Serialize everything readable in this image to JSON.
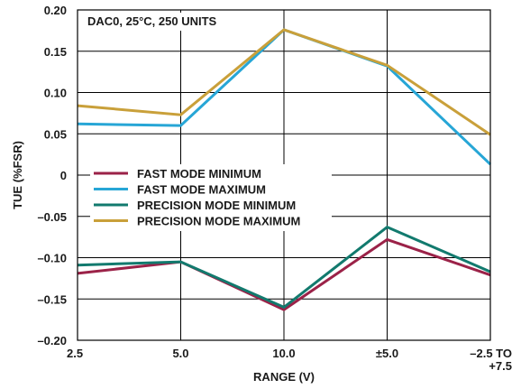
{
  "chart_data": {
    "type": "line",
    "annotation": "DAC0, 25°C, 250 UNITS",
    "xlabel": "RANGE (V)",
    "ylabel": "TUE (%FSR)",
    "categories": [
      "2.5",
      "5.0",
      "10.0",
      "±5.0",
      "–2.5 TO\n+7.5"
    ],
    "ylim": [
      -0.2,
      0.2
    ],
    "yticks": [
      0.2,
      0.15,
      0.1,
      0.05,
      0,
      -0.05,
      -0.1,
      -0.15,
      -0.2
    ],
    "ytick_labels": [
      "0.20",
      "0.15",
      "0.10",
      "0.05",
      "0",
      "–0.05",
      "–0.10",
      "–0.15",
      "–0.20"
    ],
    "grid": true,
    "legend_position": "middle-left",
    "series": [
      {
        "name": "FAST MODE MINIMUM",
        "color": "#9b2248",
        "values": [
          -0.119,
          -0.105,
          -0.163,
          -0.078,
          -0.121
        ]
      },
      {
        "name": "FAST MODE MAXIMUM",
        "color": "#27a6d6",
        "values": [
          0.062,
          0.06,
          0.176,
          0.132,
          0.013
        ]
      },
      {
        "name": "PRECISION MODE MINIMUM",
        "color": "#127a6e",
        "values": [
          -0.109,
          -0.105,
          -0.16,
          -0.063,
          -0.117
        ]
      },
      {
        "name": "PRECISION MODE MAXIMUM",
        "color": "#c9a03a",
        "values": [
          0.084,
          0.073,
          0.176,
          0.133,
          0.049
        ]
      }
    ]
  }
}
